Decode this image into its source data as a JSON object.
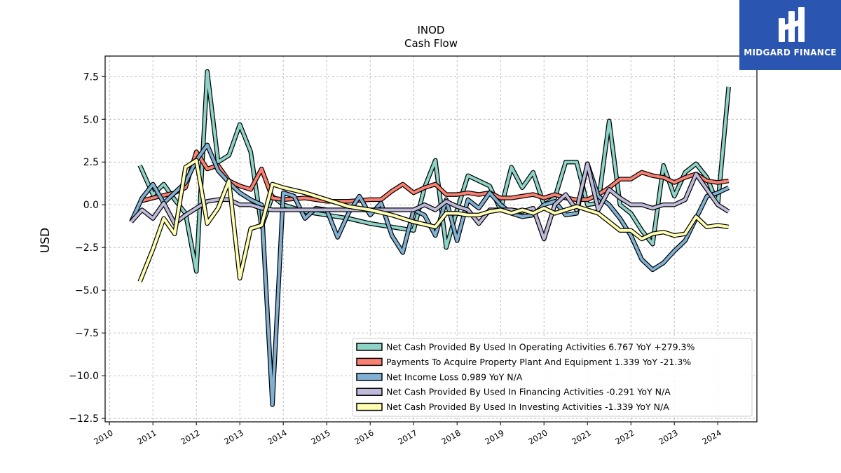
{
  "chart_data": {
    "type": "line",
    "title": "INOD",
    "subtitle": "Cash Flow",
    "xlabel": "",
    "ylabel": "USD",
    "xlim": [
      2009.9,
      2024.9
    ],
    "ylim": [
      -12.7,
      8.7
    ],
    "yticks": [
      -12.5,
      -10.0,
      -7.5,
      -5.0,
      -2.5,
      0.0,
      2.5,
      5.0,
      7.5
    ],
    "ytick_labels": [
      "−12.5",
      "−10.0",
      "−7.5",
      "−5.0",
      "−2.5",
      "0.0",
      "2.5",
      "5.0",
      "7.5"
    ],
    "xticks": [
      2010,
      2011,
      2012,
      2013,
      2014,
      2015,
      2016,
      2017,
      2018,
      2019,
      2020,
      2021,
      2022,
      2023,
      2024
    ],
    "xtick_labels": [
      "2010",
      "2011",
      "2012",
      "2013",
      "2014",
      "2015",
      "2016",
      "2017",
      "2018",
      "2019",
      "2020",
      "2021",
      "2022",
      "2023",
      "2024"
    ],
    "grid": true,
    "legend_position": "lower-right",
    "series": [
      {
        "name": "Net Cash Provided By Used In Operating Activities  6.767 YoY +279.3%",
        "color": "#8dd3c7",
        "points": [
          [
            2010.7,
            2.3
          ],
          [
            2011.0,
            0.6
          ],
          [
            2011.25,
            1.2
          ],
          [
            2011.5,
            0.3
          ],
          [
            2011.75,
            -0.5
          ],
          [
            2012.0,
            -3.9
          ],
          [
            2012.25,
            7.8
          ],
          [
            2012.5,
            2.5
          ],
          [
            2012.75,
            2.9
          ],
          [
            2013.0,
            4.7
          ],
          [
            2013.25,
            3.1
          ],
          [
            2013.5,
            -1.3
          ],
          [
            2013.75,
            0.5
          ],
          [
            2014.0,
            0.0
          ],
          [
            2014.25,
            -0.2
          ],
          [
            2014.5,
            -0.4
          ],
          [
            2015.0,
            -0.6
          ],
          [
            2015.5,
            -0.8
          ],
          [
            2016.0,
            -1.1
          ],
          [
            2016.5,
            -1.3
          ],
          [
            2016.75,
            -1.4
          ],
          [
            2017.0,
            -1.5
          ],
          [
            2017.25,
            1.0
          ],
          [
            2017.5,
            2.6
          ],
          [
            2017.75,
            -2.5
          ],
          [
            2018.0,
            -0.3
          ],
          [
            2018.25,
            1.7
          ],
          [
            2018.5,
            1.4
          ],
          [
            2018.75,
            1.1
          ],
          [
            2019.0,
            -0.3
          ],
          [
            2019.25,
            2.2
          ],
          [
            2019.5,
            1.0
          ],
          [
            2019.75,
            1.9
          ],
          [
            2020.0,
            0.0
          ],
          [
            2020.25,
            0.4
          ],
          [
            2020.5,
            2.5
          ],
          [
            2020.75,
            2.5
          ],
          [
            2021.0,
            0.0
          ],
          [
            2021.25,
            0.1
          ],
          [
            2021.5,
            4.9
          ],
          [
            2021.75,
            0.0
          ],
          [
            2022.0,
            -0.5
          ],
          [
            2022.25,
            -1.5
          ],
          [
            2022.5,
            -2.3
          ],
          [
            2022.75,
            2.3
          ],
          [
            2023.0,
            0.5
          ],
          [
            2023.25,
            1.9
          ],
          [
            2023.5,
            2.4
          ],
          [
            2023.75,
            1.6
          ],
          [
            2024.0,
            0.0
          ],
          [
            2024.25,
            6.9
          ]
        ]
      },
      {
        "name": "Payments To Acquire Property Plant And Equipment  1.339 YoY -21.3%",
        "color": "#fb8072",
        "points": [
          [
            2010.7,
            0.2
          ],
          [
            2011.0,
            0.4
          ],
          [
            2011.5,
            0.7
          ],
          [
            2011.75,
            1.0
          ],
          [
            2012.0,
            3.1
          ],
          [
            2012.25,
            2.1
          ],
          [
            2012.5,
            2.3
          ],
          [
            2012.75,
            1.4
          ],
          [
            2013.0,
            1.1
          ],
          [
            2013.25,
            0.9
          ],
          [
            2013.5,
            2.1
          ],
          [
            2013.75,
            0.4
          ],
          [
            2014.0,
            0.3
          ],
          [
            2014.5,
            0.4
          ],
          [
            2015.0,
            0.2
          ],
          [
            2015.5,
            0.2
          ],
          [
            2016.0,
            0.3
          ],
          [
            2016.25,
            0.3
          ],
          [
            2016.5,
            0.8
          ],
          [
            2016.75,
            1.2
          ],
          [
            2017.0,
            0.7
          ],
          [
            2017.25,
            1.0
          ],
          [
            2017.5,
            1.2
          ],
          [
            2017.75,
            0.6
          ],
          [
            2018.0,
            0.6
          ],
          [
            2018.25,
            0.7
          ],
          [
            2018.5,
            0.6
          ],
          [
            2018.75,
            0.7
          ],
          [
            2019.0,
            0.4
          ],
          [
            2019.25,
            0.4
          ],
          [
            2019.5,
            0.5
          ],
          [
            2019.75,
            0.6
          ],
          [
            2020.0,
            0.4
          ],
          [
            2020.25,
            0.6
          ],
          [
            2020.5,
            0.4
          ],
          [
            2020.75,
            0.3
          ],
          [
            2021.0,
            0.3
          ],
          [
            2021.25,
            0.6
          ],
          [
            2021.5,
            1.0
          ],
          [
            2021.75,
            1.5
          ],
          [
            2022.0,
            1.5
          ],
          [
            2022.25,
            1.9
          ],
          [
            2022.5,
            1.7
          ],
          [
            2022.75,
            1.6
          ],
          [
            2023.0,
            1.3
          ],
          [
            2023.25,
            1.6
          ],
          [
            2023.5,
            1.8
          ],
          [
            2023.75,
            1.4
          ],
          [
            2024.0,
            1.3
          ],
          [
            2024.25,
            1.4
          ]
        ]
      },
      {
        "name": "Net Income Loss  0.989 YoY N/A",
        "color": "#80b1d3",
        "points": [
          [
            2010.5,
            -1.0
          ],
          [
            2010.75,
            0.4
          ],
          [
            2011.0,
            1.2
          ],
          [
            2011.25,
            0.1
          ],
          [
            2011.5,
            0.7
          ],
          [
            2011.75,
            1.3
          ],
          [
            2012.0,
            2.6
          ],
          [
            2012.25,
            3.5
          ],
          [
            2012.5,
            2.0
          ],
          [
            2012.75,
            1.3
          ],
          [
            2013.0,
            0.7
          ],
          [
            2013.25,
            0.3
          ],
          [
            2013.5,
            0.0
          ],
          [
            2013.75,
            -11.7
          ],
          [
            2014.0,
            0.7
          ],
          [
            2014.25,
            0.5
          ],
          [
            2014.5,
            -0.8
          ],
          [
            2014.75,
            -0.2
          ],
          [
            2015.0,
            -0.3
          ],
          [
            2015.25,
            -1.9
          ],
          [
            2015.5,
            -0.5
          ],
          [
            2015.75,
            0.5
          ],
          [
            2016.0,
            -0.6
          ],
          [
            2016.25,
            0.1
          ],
          [
            2016.5,
            -1.8
          ],
          [
            2016.75,
            -2.8
          ],
          [
            2017.0,
            -0.3
          ],
          [
            2017.25,
            -0.6
          ],
          [
            2017.5,
            -1.8
          ],
          [
            2017.75,
            0.3
          ],
          [
            2018.0,
            -2.1
          ],
          [
            2018.25,
            0.3
          ],
          [
            2018.5,
            -0.2
          ],
          [
            2018.75,
            0.7
          ],
          [
            2019.0,
            0.0
          ],
          [
            2019.25,
            -0.5
          ],
          [
            2019.5,
            -0.7
          ],
          [
            2019.75,
            -0.6
          ],
          [
            2020.0,
            0.0
          ],
          [
            2020.25,
            0.2
          ],
          [
            2020.5,
            -0.6
          ],
          [
            2020.75,
            -0.5
          ],
          [
            2021.0,
            2.4
          ],
          [
            2021.25,
            0.5
          ],
          [
            2021.5,
            0.0
          ],
          [
            2021.75,
            -0.8
          ],
          [
            2022.0,
            -1.8
          ],
          [
            2022.25,
            -3.2
          ],
          [
            2022.5,
            -3.8
          ],
          [
            2022.75,
            -3.4
          ],
          [
            2023.0,
            -2.7
          ],
          [
            2023.25,
            -2.1
          ],
          [
            2023.5,
            -0.8
          ],
          [
            2023.75,
            0.5
          ],
          [
            2024.0,
            0.7
          ],
          [
            2024.25,
            1.0
          ]
        ]
      },
      {
        "name": "Net Cash Provided By Used In Financing Activities  -0.291 YoY N/A",
        "color": "#bebada",
        "points": [
          [
            2010.5,
            -1.0
          ],
          [
            2010.75,
            -0.3
          ],
          [
            2011.0,
            -0.8
          ],
          [
            2011.25,
            0.1
          ],
          [
            2011.5,
            -1.1
          ],
          [
            2011.75,
            -0.6
          ],
          [
            2012.0,
            -0.2
          ],
          [
            2012.25,
            0.2
          ],
          [
            2012.5,
            0.3
          ],
          [
            2012.75,
            0.3
          ],
          [
            2013.0,
            0.0
          ],
          [
            2013.25,
            0.0
          ],
          [
            2013.5,
            -0.2
          ],
          [
            2013.75,
            -0.3
          ],
          [
            2014.0,
            -0.3
          ],
          [
            2014.5,
            -0.3
          ],
          [
            2015.0,
            -0.3
          ],
          [
            2015.5,
            -0.3
          ],
          [
            2016.0,
            -0.3
          ],
          [
            2016.5,
            -0.3
          ],
          [
            2017.0,
            -0.3
          ],
          [
            2017.25,
            0.0
          ],
          [
            2017.5,
            -0.3
          ],
          [
            2017.75,
            0.2
          ],
          [
            2018.0,
            -0.1
          ],
          [
            2018.25,
            -0.3
          ],
          [
            2018.5,
            -1.1
          ],
          [
            2018.75,
            -0.3
          ],
          [
            2019.0,
            -0.3
          ],
          [
            2019.25,
            -0.3
          ],
          [
            2019.5,
            -0.4
          ],
          [
            2019.75,
            -0.2
          ],
          [
            2020.0,
            -2.0
          ],
          [
            2020.25,
            0.0
          ],
          [
            2020.5,
            0.6
          ],
          [
            2020.75,
            -0.3
          ],
          [
            2021.0,
            2.4
          ],
          [
            2021.25,
            -0.3
          ],
          [
            2021.5,
            0.9
          ],
          [
            2021.75,
            0.4
          ],
          [
            2022.0,
            0.0
          ],
          [
            2022.25,
            0.0
          ],
          [
            2022.5,
            -0.2
          ],
          [
            2022.75,
            0.0
          ],
          [
            2023.0,
            0.0
          ],
          [
            2023.25,
            0.3
          ],
          [
            2023.5,
            1.8
          ],
          [
            2023.75,
            0.9
          ],
          [
            2024.0,
            0.0
          ],
          [
            2024.25,
            -0.4
          ]
        ]
      },
      {
        "name": "Net Cash Provided By Used In Investing Activities  -1.339 YoY N/A",
        "color": "#ffffb3",
        "points": [
          [
            2010.7,
            -4.5
          ],
          [
            2011.0,
            -2.6
          ],
          [
            2011.25,
            -0.8
          ],
          [
            2011.5,
            -1.7
          ],
          [
            2011.75,
            2.2
          ],
          [
            2012.0,
            2.6
          ],
          [
            2012.25,
            -1.1
          ],
          [
            2012.5,
            -0.2
          ],
          [
            2012.75,
            1.4
          ],
          [
            2013.0,
            -4.3
          ],
          [
            2013.25,
            -1.4
          ],
          [
            2013.5,
            -1.2
          ],
          [
            2013.75,
            1.2
          ],
          [
            2014.0,
            1.0
          ],
          [
            2014.5,
            0.7
          ],
          [
            2015.0,
            0.3
          ],
          [
            2015.5,
            -0.1
          ],
          [
            2016.0,
            -0.3
          ],
          [
            2016.5,
            -0.6
          ],
          [
            2017.0,
            -1.0
          ],
          [
            2017.5,
            -1.3
          ],
          [
            2017.75,
            -0.5
          ],
          [
            2018.0,
            -0.5
          ],
          [
            2018.25,
            -0.6
          ],
          [
            2018.5,
            -0.6
          ],
          [
            2018.75,
            -0.4
          ],
          [
            2019.0,
            -0.3
          ],
          [
            2019.25,
            -0.5
          ],
          [
            2019.5,
            -0.3
          ],
          [
            2019.75,
            -0.5
          ],
          [
            2020.0,
            -0.2
          ],
          [
            2020.25,
            -0.5
          ],
          [
            2020.5,
            -0.3
          ],
          [
            2020.75,
            -0.1
          ],
          [
            2021.0,
            -0.3
          ],
          [
            2021.25,
            -0.5
          ],
          [
            2021.5,
            -1.0
          ],
          [
            2021.75,
            -1.5
          ],
          [
            2022.0,
            -1.5
          ],
          [
            2022.25,
            -2.0
          ],
          [
            2022.5,
            -1.7
          ],
          [
            2022.75,
            -1.6
          ],
          [
            2023.0,
            -1.8
          ],
          [
            2023.25,
            -1.7
          ],
          [
            2023.5,
            -0.7
          ],
          [
            2023.75,
            -1.3
          ],
          [
            2024.0,
            -1.2
          ],
          [
            2024.25,
            -1.3
          ]
        ]
      }
    ]
  },
  "logo": {
    "text": "MIDGARD FINANCE",
    "background": "#2a55b0"
  }
}
